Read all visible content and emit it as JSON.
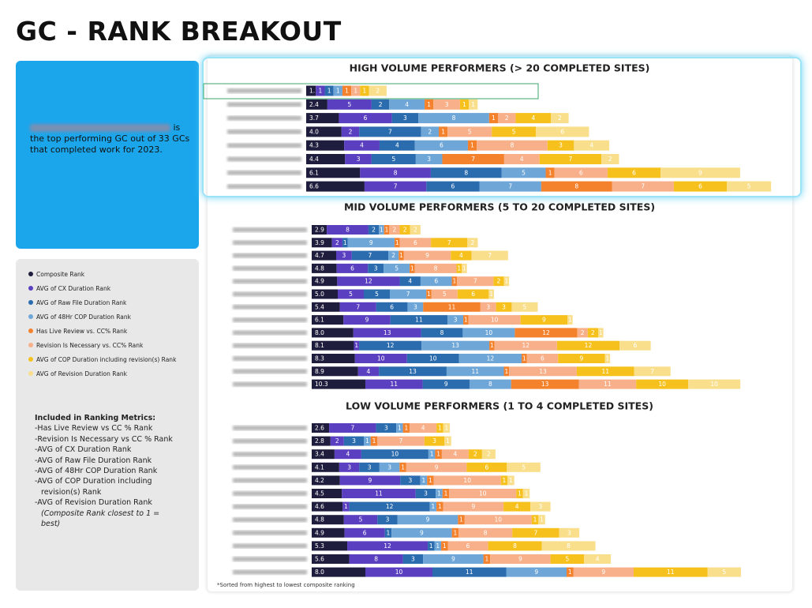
{
  "header": {
    "title": "GC - RANK BREAKOUT"
  },
  "callout": {
    "text": "is the top performing GC out of 33 GCs that completed work for 2023."
  },
  "legend": {
    "items": [
      {
        "name": "Composite Rank",
        "color": "#1f1d3d"
      },
      {
        "name": "AVG of CX Duration Rank",
        "color": "#5a3fc0"
      },
      {
        "name": "AVG of Raw File Duration Rank",
        "color": "#2b6cae"
      },
      {
        "name": "AVG of 48Hr COP Duration Rank",
        "color": "#6ea6d8"
      },
      {
        "name": "Has Live Review vs. CC% Rank",
        "color": "#f4812b"
      },
      {
        "name": "Revision Is Necessary vs. CC% Rank",
        "color": "#f7b089"
      },
      {
        "name": "AVG of COP Duration including revision(s) Rank",
        "color": "#f6c11d"
      },
      {
        "name": "AVG of Revision Duration Rank",
        "color": "#f9df8c"
      }
    ]
  },
  "metrics": {
    "title": "Included in Ranking Metrics:",
    "items": [
      "-Has Live Review vs CC % Rank",
      "-Revision Is Necessary vs CC % Rank",
      "-AVG of CX Duration Rank",
      "-AVG of Raw File Duration Rank",
      "-AVG of 48Hr COP Duration Rank",
      "-AVG of COP Duration including revision(s) Rank",
      "-AVG of Revision Duration Rank"
    ],
    "note": "(Composite Rank closest to 1 = best)"
  },
  "footnote": "*Sorted from highest to lowest composite ranking",
  "chart_data": [
    {
      "type": "bar",
      "title": "HIGH VOLUME PERFORMERS (> 20 COMPLETED SITES)",
      "series": [
        {
          "values": [
            1.1,
            2.4,
            3.7,
            4.0,
            4.3,
            4.4,
            6.1,
            6.6
          ],
          "value_labels": [
            "1.1",
            "2.4",
            "3.7",
            "4.0",
            "4.3",
            "4.4",
            "6.1",
            "6.6"
          ]
        },
        {
          "values": [
            1,
            5,
            6,
            2,
            4,
            3,
            8,
            7
          ]
        },
        {
          "values": [
            1,
            2,
            3,
            7,
            4,
            5,
            8,
            6
          ]
        },
        {
          "values": [
            1,
            4,
            8,
            2,
            6,
            3,
            5,
            7
          ]
        },
        {
          "values": [
            1,
            1,
            1,
            1,
            1,
            7,
            1,
            8
          ]
        },
        {
          "values": [
            1,
            3,
            2,
            5,
            8,
            4,
            6,
            7
          ]
        },
        {
          "values": [
            1,
            1,
            4,
            5,
            3,
            7,
            6,
            6
          ]
        },
        {
          "values": [
            2,
            1,
            2,
            6,
            4,
            2,
            9,
            5
          ]
        }
      ]
    },
    {
      "type": "bar",
      "title": "MID VOLUME PERFORMERS (5 TO 20 COMPLETED SITES)",
      "series": [
        {
          "values": [
            2.9,
            3.9,
            4.7,
            4.8,
            4.9,
            5.0,
            5.4,
            6.1,
            8.0,
            8.1,
            8.3,
            8.9,
            10.3
          ],
          "value_labels": [
            "2.9",
            "3.9",
            "4.7",
            "4.8",
            "4.9",
            "5.0",
            "5.4",
            "6.1",
            "8.0",
            "8.1",
            "8.3",
            "8.9",
            "10.3"
          ]
        },
        {
          "values": [
            8,
            2,
            3,
            6,
            12,
            5,
            7,
            9,
            13,
            1,
            10,
            4,
            11
          ]
        },
        {
          "values": [
            2,
            1,
            7,
            3,
            4,
            5,
            6,
            11,
            8,
            12,
            10,
            13,
            9
          ]
        },
        {
          "values": [
            1,
            9,
            2,
            5,
            6,
            7,
            3,
            3,
            10,
            13,
            12,
            11,
            8
          ]
        },
        {
          "values": [
            1,
            1,
            1,
            1,
            1,
            1,
            11,
            1,
            12,
            1,
            1,
            1,
            13
          ]
        },
        {
          "values": [
            2,
            6,
            9,
            8,
            7,
            5,
            3,
            10,
            2,
            12,
            6,
            13,
            11
          ]
        },
        {
          "values": [
            2,
            7,
            4,
            1,
            2,
            6,
            3,
            9,
            2,
            12,
            9,
            11,
            10
          ]
        },
        {
          "values": [
            2,
            2,
            7,
            1,
            1,
            1,
            5,
            1,
            1,
            6,
            1,
            7,
            10
          ]
        }
      ]
    },
    {
      "type": "bar",
      "title": "LOW VOLUME PERFORMERS (1 TO 4 COMPLETED SITES)",
      "series": [
        {
          "values": [
            2.6,
            2.8,
            3.4,
            4.1,
            4.2,
            4.5,
            4.6,
            4.8,
            4.9,
            5.3,
            5.6,
            8.0
          ],
          "value_labels": [
            "2.6",
            "2.8",
            "3.4",
            "4.1",
            "4.2",
            "4.5",
            "4.6",
            "4.8",
            "4.9",
            "5.3",
            "5.6",
            "8.0"
          ]
        },
        {
          "values": [
            7,
            2,
            4,
            3,
            9,
            11,
            1,
            5,
            6,
            12,
            8,
            10
          ]
        },
        {
          "values": [
            3,
            3,
            10,
            3,
            3,
            3,
            12,
            3,
            1,
            1,
            3,
            11
          ]
        },
        {
          "values": [
            1,
            1,
            1,
            3,
            1,
            1,
            1,
            9,
            9,
            1,
            9,
            9
          ]
        },
        {
          "values": [
            1,
            1,
            1,
            1,
            1,
            1,
            1,
            1,
            1,
            1,
            1,
            1
          ]
        },
        {
          "values": [
            4,
            7,
            4,
            9,
            10,
            10,
            9,
            10,
            8,
            6,
            9,
            9
          ]
        },
        {
          "values": [
            1,
            3,
            2,
            6,
            1,
            1,
            4,
            1,
            7,
            8,
            5,
            11
          ]
        },
        {
          "values": [
            1,
            1,
            2,
            5,
            1,
            1,
            3,
            1,
            3,
            8,
            4,
            5
          ]
        }
      ]
    }
  ]
}
